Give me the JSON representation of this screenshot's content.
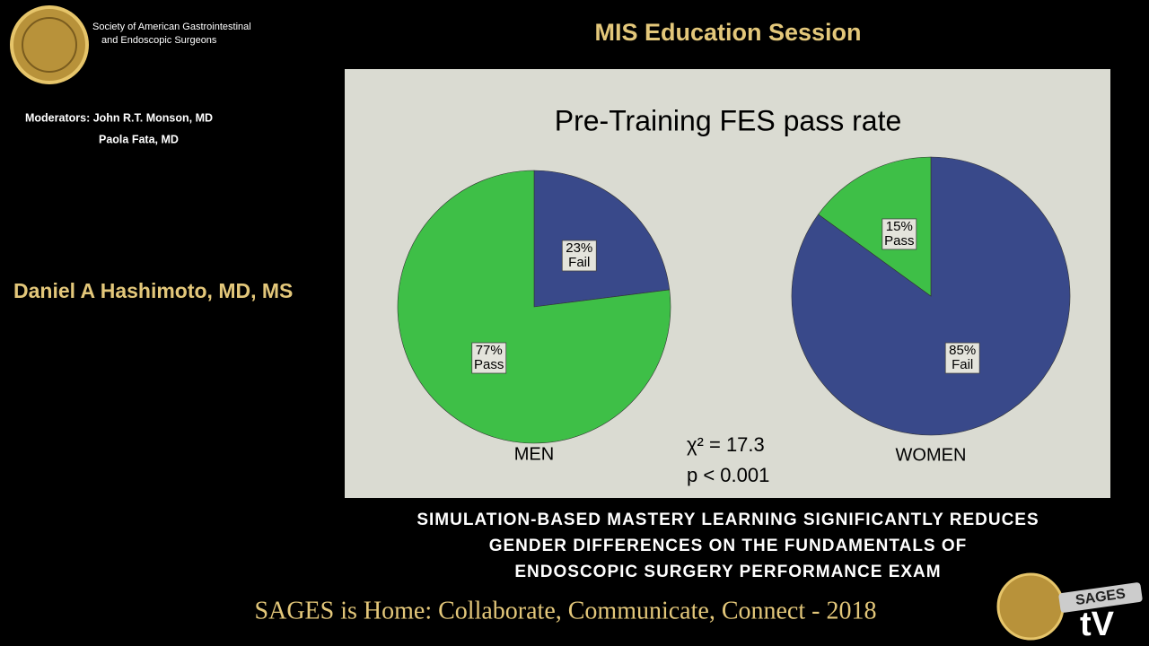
{
  "header": {
    "org_line1": "Society of American Gastrointestinal",
    "org_line2": "and Endoscopic Surgeons",
    "session": "MIS Education Session",
    "moderators_label": "Moderators: John R.T. Monson, MD",
    "moderator2": "Paola Fata, MD"
  },
  "speaker": "Daniel A Hashimoto, MD, MS",
  "slide_title": "Pre-Training FES pass rate",
  "chart_data": [
    {
      "type": "pie",
      "title": "MEN",
      "categories": [
        "Fail",
        "Pass"
      ],
      "values": [
        23,
        77
      ],
      "value_labels": [
        "23%",
        "77%"
      ],
      "colors": [
        "#39498a",
        "#3ebf47"
      ]
    },
    {
      "type": "pie",
      "title": "WOMEN",
      "categories": [
        "Fail",
        "Pass"
      ],
      "values": [
        85,
        15
      ],
      "value_labels": [
        "85%",
        "15%"
      ],
      "colors": [
        "#39498a",
        "#3ebf47"
      ]
    }
  ],
  "stats": {
    "chi_square": "χ² = 17.3",
    "p_value": "p < 0.001"
  },
  "caption": [
    "SIMULATION-BASED MASTERY LEARNING SIGNIFICANTLY REDUCES",
    "GENDER DIFFERENCES ON THE FUNDAMENTALS OF",
    "ENDOSCOPIC SURGERY PERFORMANCE EXAM"
  ],
  "footer": "SAGES is Home: Collaborate, Communicate, Connect - 2018",
  "logo": {
    "brand": "SAGES",
    "tv": "tV"
  }
}
